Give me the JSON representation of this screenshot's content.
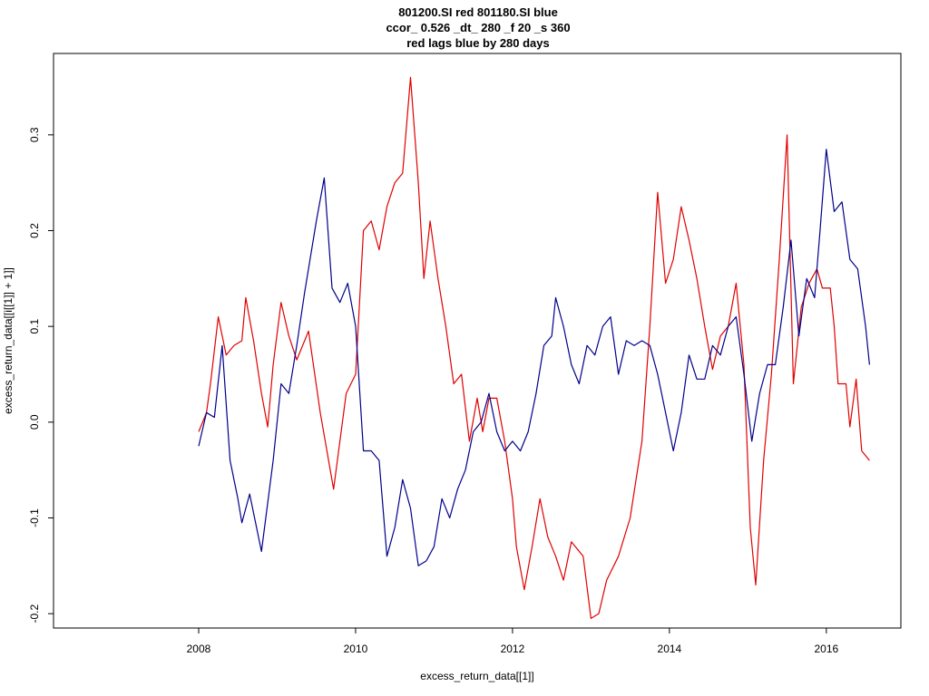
{
  "chart_data": {
    "type": "line",
    "title_lines": [
      "801200.SI red 801180.SI blue",
      "ccor_ 0.526 _dt_ 280 _f 20 _s 360",
      "red lags blue by 280 days"
    ],
    "xlabel": "excess_return_data[[1]]",
    "ylabel": "excess_return_data[[i[[1]] + 1]]",
    "xlim": [
      2006.15,
      2016.95
    ],
    "ylim": [
      -0.215,
      0.385
    ],
    "x_ticks": [
      2008,
      2010,
      2012,
      2014,
      2016
    ],
    "x_tick_labels": [
      "2008",
      "2010",
      "2012",
      "2014",
      "2016"
    ],
    "y_ticks": [
      -0.2,
      -0.1,
      0.0,
      0.1,
      0.2,
      0.3
    ],
    "y_tick_labels": [
      "-0.2",
      "-0.1",
      "0.0",
      "0.1",
      "0.2",
      "0.3"
    ],
    "grid": false,
    "series": [
      {
        "color": "#e00000",
        "points": [
          [
            2008.0,
            -0.01
          ],
          [
            2008.1,
            0.01
          ],
          [
            2008.15,
            0.04
          ],
          [
            2008.25,
            0.11
          ],
          [
            2008.35,
            0.07
          ],
          [
            2008.45,
            0.08
          ],
          [
            2008.55,
            0.085
          ],
          [
            2008.6,
            0.13
          ],
          [
            2008.7,
            0.085
          ],
          [
            2008.8,
            0.03
          ],
          [
            2008.88,
            -0.005
          ],
          [
            2008.95,
            0.06
          ],
          [
            2009.05,
            0.125
          ],
          [
            2009.15,
            0.09
          ],
          [
            2009.25,
            0.065
          ],
          [
            2009.4,
            0.095
          ],
          [
            2009.55,
            0.01
          ],
          [
            2009.72,
            -0.07
          ],
          [
            2009.88,
            0.03
          ],
          [
            2010.0,
            0.05
          ],
          [
            2010.1,
            0.2
          ],
          [
            2010.2,
            0.21
          ],
          [
            2010.3,
            0.18
          ],
          [
            2010.4,
            0.225
          ],
          [
            2010.5,
            0.25
          ],
          [
            2010.6,
            0.26
          ],
          [
            2010.7,
            0.36
          ],
          [
            2010.8,
            0.25
          ],
          [
            2010.87,
            0.15
          ],
          [
            2010.95,
            0.21
          ],
          [
            2011.05,
            0.15
          ],
          [
            2011.15,
            0.1
          ],
          [
            2011.25,
            0.04
          ],
          [
            2011.35,
            0.05
          ],
          [
            2011.45,
            -0.02
          ],
          [
            2011.55,
            0.025
          ],
          [
            2011.62,
            -0.01
          ],
          [
            2011.7,
            0.025
          ],
          [
            2011.8,
            0.025
          ],
          [
            2011.9,
            -0.02
          ],
          [
            2012.0,
            -0.08
          ],
          [
            2012.05,
            -0.13
          ],
          [
            2012.15,
            -0.175
          ],
          [
            2012.25,
            -0.13
          ],
          [
            2012.35,
            -0.08
          ],
          [
            2012.45,
            -0.12
          ],
          [
            2012.55,
            -0.14
          ],
          [
            2012.65,
            -0.165
          ],
          [
            2012.75,
            -0.125
          ],
          [
            2012.9,
            -0.14
          ],
          [
            2013.0,
            -0.205
          ],
          [
            2013.1,
            -0.2
          ],
          [
            2013.2,
            -0.165
          ],
          [
            2013.35,
            -0.14
          ],
          [
            2013.5,
            -0.1
          ],
          [
            2013.65,
            -0.02
          ],
          [
            2013.75,
            0.1
          ],
          [
            2013.85,
            0.24
          ],
          [
            2013.95,
            0.145
          ],
          [
            2014.05,
            0.17
          ],
          [
            2014.15,
            0.225
          ],
          [
            2014.25,
            0.19
          ],
          [
            2014.35,
            0.15
          ],
          [
            2014.45,
            0.1
          ],
          [
            2014.55,
            0.055
          ],
          [
            2014.65,
            0.09
          ],
          [
            2014.75,
            0.1
          ],
          [
            2014.85,
            0.145
          ],
          [
            2014.95,
            0.06
          ],
          [
            2015.03,
            -0.11
          ],
          [
            2015.1,
            -0.17
          ],
          [
            2015.2,
            -0.04
          ],
          [
            2015.3,
            0.05
          ],
          [
            2015.4,
            0.17
          ],
          [
            2015.5,
            0.3
          ],
          [
            2015.58,
            0.04
          ],
          [
            2015.68,
            0.12
          ],
          [
            2015.78,
            0.145
          ],
          [
            2015.88,
            0.16
          ],
          [
            2015.95,
            0.14
          ],
          [
            2016.05,
            0.14
          ],
          [
            2016.1,
            0.1
          ],
          [
            2016.15,
            0.04
          ],
          [
            2016.25,
            0.04
          ],
          [
            2016.3,
            -0.005
          ],
          [
            2016.38,
            0.045
          ],
          [
            2016.45,
            -0.03
          ],
          [
            2016.55,
            -0.04
          ]
        ]
      },
      {
        "color": "#00008b",
        "points": [
          [
            2008.0,
            -0.025
          ],
          [
            2008.1,
            0.01
          ],
          [
            2008.2,
            0.005
          ],
          [
            2008.3,
            0.08
          ],
          [
            2008.4,
            -0.04
          ],
          [
            2008.5,
            -0.08
          ],
          [
            2008.55,
            -0.105
          ],
          [
            2008.65,
            -0.075
          ],
          [
            2008.8,
            -0.135
          ],
          [
            2008.95,
            -0.04
          ],
          [
            2009.05,
            0.04
          ],
          [
            2009.15,
            0.03
          ],
          [
            2009.25,
            0.08
          ],
          [
            2009.35,
            0.135
          ],
          [
            2009.5,
            0.21
          ],
          [
            2009.6,
            0.255
          ],
          [
            2009.7,
            0.14
          ],
          [
            2009.8,
            0.125
          ],
          [
            2009.9,
            0.145
          ],
          [
            2010.0,
            0.1
          ],
          [
            2010.1,
            -0.03
          ],
          [
            2010.2,
            -0.03
          ],
          [
            2010.3,
            -0.04
          ],
          [
            2010.4,
            -0.14
          ],
          [
            2010.5,
            -0.11
          ],
          [
            2010.6,
            -0.06
          ],
          [
            2010.7,
            -0.09
          ],
          [
            2010.8,
            -0.15
          ],
          [
            2010.9,
            -0.145
          ],
          [
            2011.0,
            -0.13
          ],
          [
            2011.1,
            -0.08
          ],
          [
            2011.2,
            -0.1
          ],
          [
            2011.3,
            -0.07
          ],
          [
            2011.4,
            -0.05
          ],
          [
            2011.5,
            -0.01
          ],
          [
            2011.6,
            0.0
          ],
          [
            2011.7,
            0.03
          ],
          [
            2011.8,
            -0.01
          ],
          [
            2011.9,
            -0.03
          ],
          [
            2012.0,
            -0.02
          ],
          [
            2012.1,
            -0.03
          ],
          [
            2012.2,
            -0.01
          ],
          [
            2012.3,
            0.03
          ],
          [
            2012.4,
            0.08
          ],
          [
            2012.5,
            0.09
          ],
          [
            2012.55,
            0.13
          ],
          [
            2012.65,
            0.1
          ],
          [
            2012.75,
            0.06
          ],
          [
            2012.85,
            0.04
          ],
          [
            2012.95,
            0.08
          ],
          [
            2013.05,
            0.07
          ],
          [
            2013.15,
            0.1
          ],
          [
            2013.25,
            0.11
          ],
          [
            2013.35,
            0.05
          ],
          [
            2013.45,
            0.085
          ],
          [
            2013.55,
            0.08
          ],
          [
            2013.65,
            0.085
          ],
          [
            2013.75,
            0.08
          ],
          [
            2013.85,
            0.05
          ],
          [
            2013.95,
            0.01
          ],
          [
            2014.05,
            -0.03
          ],
          [
            2014.15,
            0.01
          ],
          [
            2014.25,
            0.07
          ],
          [
            2014.35,
            0.045
          ],
          [
            2014.45,
            0.045
          ],
          [
            2014.55,
            0.08
          ],
          [
            2014.65,
            0.07
          ],
          [
            2014.75,
            0.1
          ],
          [
            2014.85,
            0.11
          ],
          [
            2014.95,
            0.05
          ],
          [
            2015.05,
            -0.02
          ],
          [
            2015.15,
            0.03
          ],
          [
            2015.25,
            0.06
          ],
          [
            2015.35,
            0.06
          ],
          [
            2015.45,
            0.12
          ],
          [
            2015.55,
            0.19
          ],
          [
            2015.65,
            0.09
          ],
          [
            2015.75,
            0.15
          ],
          [
            2015.85,
            0.13
          ],
          [
            2015.92,
            0.2
          ],
          [
            2016.0,
            0.285
          ],
          [
            2016.1,
            0.22
          ],
          [
            2016.2,
            0.23
          ],
          [
            2016.3,
            0.17
          ],
          [
            2016.4,
            0.16
          ],
          [
            2016.5,
            0.1
          ],
          [
            2016.55,
            0.06
          ]
        ]
      }
    ]
  }
}
